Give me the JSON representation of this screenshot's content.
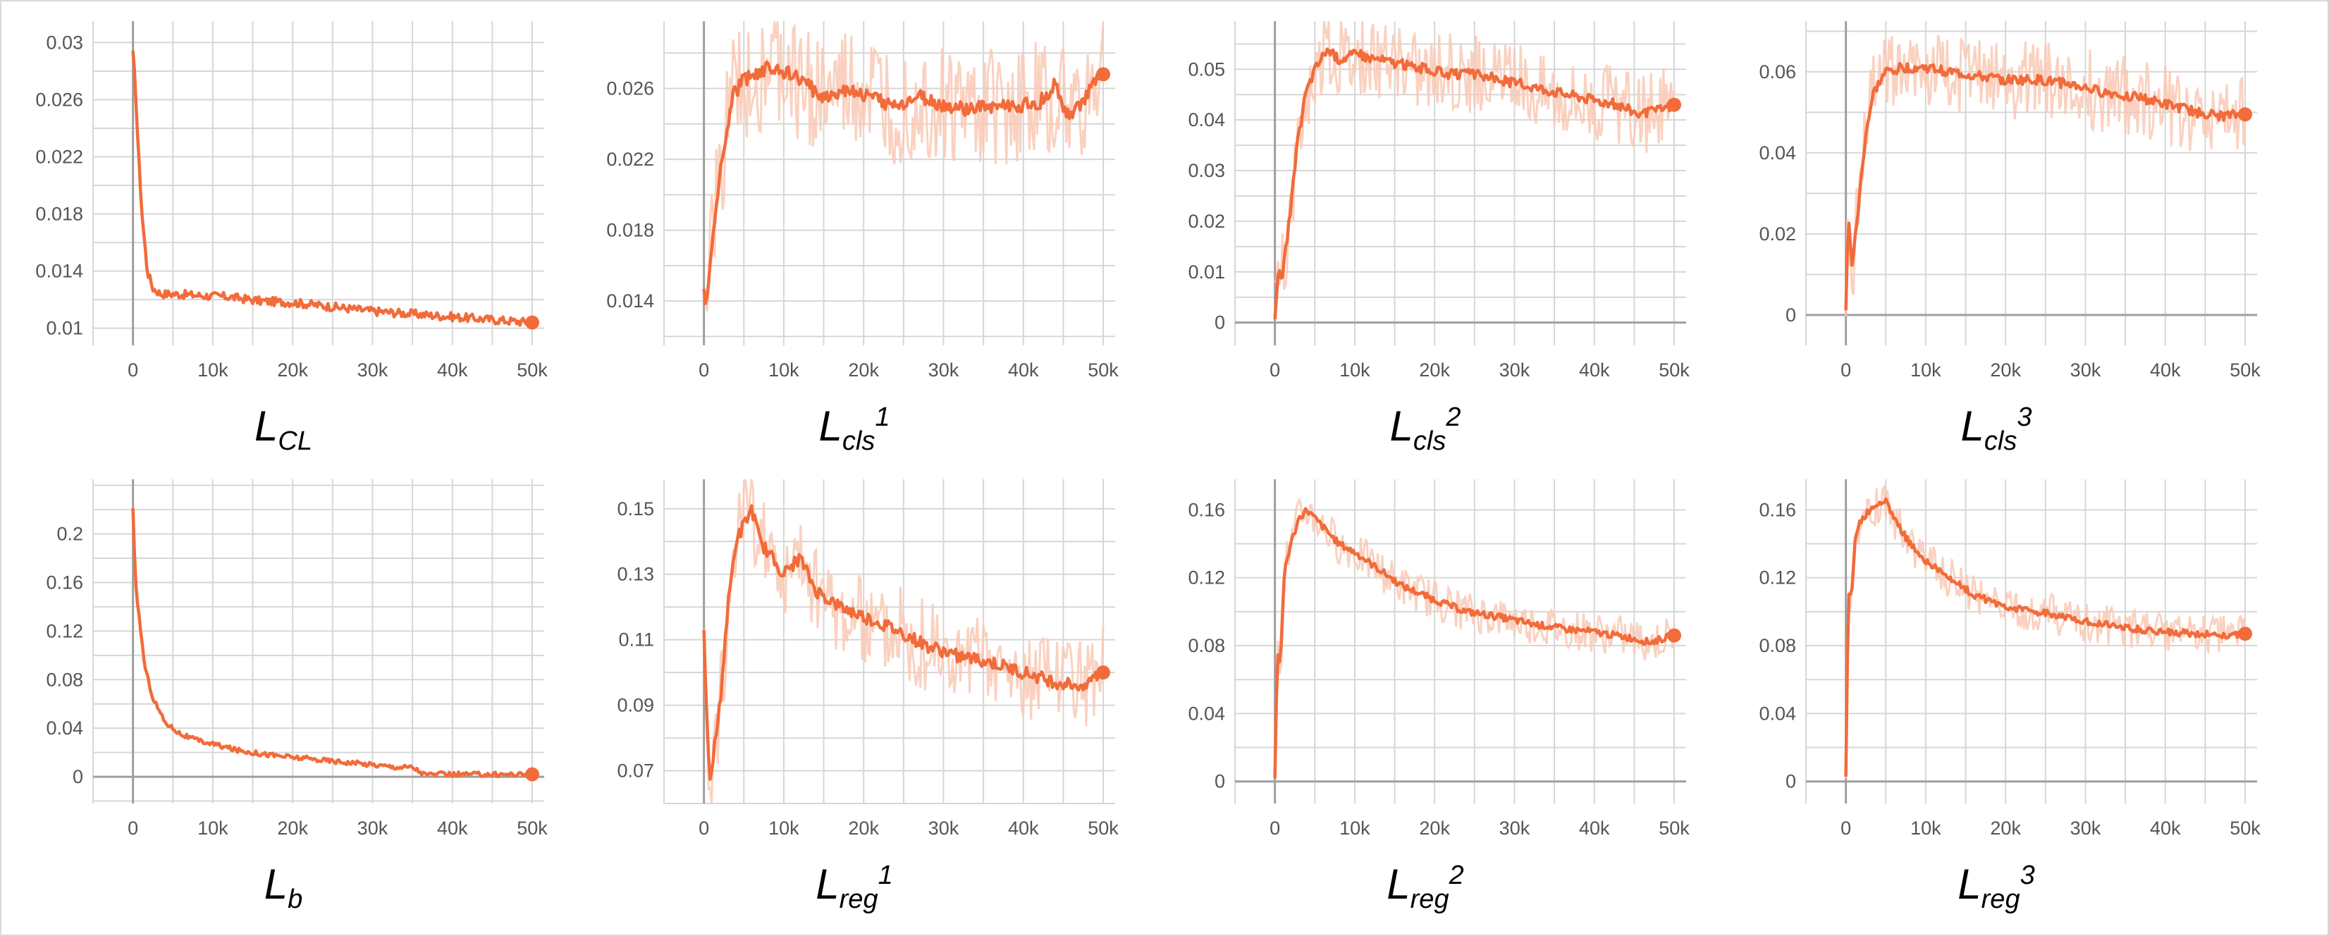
{
  "colors": {
    "line": "#f26b3a",
    "raw": "#f9c9b5",
    "grid": "#d6d6d6",
    "axis": "#9e9e9e"
  },
  "chart_data": [
    {
      "type": "line",
      "id": "lcl",
      "label": {
        "base": "L",
        "sub": "CL",
        "sup": ""
      },
      "xlim": [
        -5000,
        51500
      ],
      "ylim": [
        0.0088,
        0.0315
      ],
      "xticks": [
        0,
        10000,
        20000,
        30000,
        40000,
        50000
      ],
      "xtick_labels": [
        "0",
        "10k",
        "20k",
        "30k",
        "40k",
        "50k"
      ],
      "yticks": [
        0.01,
        0.014,
        0.018,
        0.022,
        0.026,
        0.03
      ],
      "ytick_labels": [
        "0.01",
        "0.014",
        "0.018",
        "0.022",
        "0.026",
        "0.03"
      ],
      "series": [
        {
          "x": [
            0,
            300,
            700,
            1200,
            1800,
            2500,
            3500,
            5000,
            8000,
            12000,
            16000,
            20000,
            25000,
            30000,
            35000,
            40000,
            45000,
            50000
          ],
          "y": [
            0.0292,
            0.027,
            0.022,
            0.0175,
            0.014,
            0.0128,
            0.0124,
            0.0124,
            0.0123,
            0.0122,
            0.0119,
            0.0118,
            0.0115,
            0.0112,
            0.011,
            0.0108,
            0.0106,
            0.0104
          ]
        }
      ],
      "noise": 0.0003,
      "endpoint": [
        50000,
        0.0104
      ]
    },
    {
      "type": "line",
      "id": "lcls1",
      "label": {
        "base": "L",
        "sub": "cls",
        "sup": "1"
      },
      "xlim": [
        -5000,
        51500
      ],
      "ylim": [
        0.0115,
        0.0298
      ],
      "xticks": [
        0,
        10000,
        20000,
        30000,
        40000,
        50000
      ],
      "xtick_labels": [
        "0",
        "10k",
        "20k",
        "30k",
        "40k",
        "50k"
      ],
      "yticks": [
        0.014,
        0.018,
        0.022,
        0.026
      ],
      "ytick_labels": [
        "0.014",
        "0.018",
        "0.022",
        "0.026"
      ],
      "series": [
        {
          "x": [
            0,
            300,
            800,
            1500,
            2500,
            3500,
            5000,
            7000,
            9000,
            12000,
            15000,
            18000,
            21000,
            24000,
            27000,
            30000,
            33000,
            36000,
            39000,
            42000,
            44000,
            45500,
            47000,
            48500,
            50000
          ],
          "y": [
            0.015,
            0.0135,
            0.016,
            0.0195,
            0.0225,
            0.0255,
            0.0265,
            0.027,
            0.0272,
            0.0265,
            0.0255,
            0.026,
            0.0255,
            0.025,
            0.0255,
            0.025,
            0.0248,
            0.025,
            0.025,
            0.0252,
            0.0262,
            0.0245,
            0.025,
            0.026,
            0.0268
          ]
        }
      ],
      "noise": 0.0004,
      "raw_spread": 0.0035,
      "endpoint": [
        50000,
        0.0268
      ]
    },
    {
      "type": "line",
      "id": "lcls2",
      "label": {
        "base": "L",
        "sub": "cls",
        "sup": "2"
      },
      "xlim": [
        -5000,
        51500
      ],
      "ylim": [
        -0.0045,
        0.0595
      ],
      "xticks": [
        0,
        10000,
        20000,
        30000,
        40000,
        50000
      ],
      "xtick_labels": [
        "0",
        "10k",
        "20k",
        "30k",
        "40k",
        "50k"
      ],
      "yticks": [
        0,
        0.01,
        0.02,
        0.03,
        0.04,
        0.05
      ],
      "ytick_labels": [
        "0",
        "0.01",
        "0.02",
        "0.03",
        "0.04",
        "0.05"
      ],
      "series": [
        {
          "x": [
            0,
            400,
            1000,
            1800,
            2800,
            3800,
            5000,
            6500,
            8000,
            10000,
            13000,
            16000,
            19000,
            22000,
            25000,
            28000,
            31000,
            34000,
            37000,
            40000,
            43000,
            46000,
            48000,
            50000
          ],
          "y": [
            0.001,
            0.009,
            0.01,
            0.02,
            0.035,
            0.045,
            0.05,
            0.054,
            0.052,
            0.053,
            0.052,
            0.051,
            0.05,
            0.049,
            0.049,
            0.048,
            0.047,
            0.046,
            0.045,
            0.044,
            0.043,
            0.041,
            0.042,
            0.043
          ]
        }
      ],
      "noise": 0.001,
      "raw_spread": 0.008,
      "endpoint": [
        50000,
        0.043
      ]
    },
    {
      "type": "line",
      "id": "lcls3",
      "label": {
        "base": "L",
        "sub": "cls",
        "sup": "3"
      },
      "xlim": [
        -5000,
        51500
      ],
      "ylim": [
        -0.0075,
        0.0725
      ],
      "xticks": [
        0,
        10000,
        20000,
        30000,
        40000,
        50000
      ],
      "xtick_labels": [
        "0",
        "10k",
        "20k",
        "30k",
        "40k",
        "50k"
      ],
      "yticks": [
        0,
        0.02,
        0.04,
        0.06
      ],
      "ytick_labels": [
        "0",
        "0.02",
        "0.04",
        "0.06"
      ],
      "series": [
        {
          "x": [
            0,
            300,
            800,
            1500,
            2500,
            3500,
            5000,
            7000,
            10000,
            13000,
            16000,
            20000,
            24000,
            28000,
            32000,
            36000,
            40000,
            44000,
            47000,
            50000
          ],
          "y": [
            0.001,
            0.024,
            0.012,
            0.025,
            0.045,
            0.055,
            0.06,
            0.061,
            0.061,
            0.06,
            0.059,
            0.058,
            0.058,
            0.057,
            0.055,
            0.054,
            0.052,
            0.05,
            0.049,
            0.0495
          ]
        }
      ],
      "noise": 0.0012,
      "raw_spread": 0.01,
      "endpoint": [
        50000,
        0.0495
      ]
    },
    {
      "type": "line",
      "id": "lb",
      "label": {
        "base": "L",
        "sub": "b",
        "sup": ""
      },
      "xlim": [
        -5000,
        51500
      ],
      "ylim": [
        -0.022,
        0.245
      ],
      "xticks": [
        0,
        10000,
        20000,
        30000,
        40000,
        50000
      ],
      "xtick_labels": [
        "0",
        "10k",
        "20k",
        "30k",
        "40k",
        "50k"
      ],
      "yticks": [
        0,
        0.04,
        0.08,
        0.12,
        0.16,
        0.2
      ],
      "ytick_labels": [
        "0",
        "0.04",
        "0.08",
        "0.12",
        "0.16",
        "0.2"
      ],
      "series": [
        {
          "x": [
            0,
            300,
            800,
            1500,
            2500,
            4000,
            6000,
            8000,
            10000,
            13000,
            16000,
            20000,
            25000,
            30000,
            33000,
            35000,
            36500,
            40000,
            45000,
            50000
          ],
          "y": [
            0.22,
            0.16,
            0.13,
            0.09,
            0.065,
            0.045,
            0.035,
            0.03,
            0.027,
            0.022,
            0.019,
            0.016,
            0.013,
            0.01,
            0.008,
            0.008,
            0.002,
            0.002,
            0.002,
            0.002
          ]
        }
      ],
      "noise": 0.002,
      "endpoint": [
        50000,
        0.002
      ]
    },
    {
      "type": "line",
      "id": "lreg1",
      "label": {
        "base": "L",
        "sub": "reg",
        "sup": "1"
      },
      "xlim": [
        -5000,
        51500
      ],
      "ylim": [
        0.06,
        0.159
      ],
      "xticks": [
        0,
        10000,
        20000,
        30000,
        40000,
        50000
      ],
      "xtick_labels": [
        "0",
        "10k",
        "20k",
        "30k",
        "40k",
        "50k"
      ],
      "yticks": [
        0.07,
        0.09,
        0.11,
        0.13,
        0.15
      ],
      "ytick_labels": [
        "0.07",
        "0.09",
        "0.11",
        "0.13",
        "0.15"
      ],
      "series": [
        {
          "x": [
            0,
            300,
            700,
            1200,
            2000,
            3000,
            4000,
            5000,
            6000,
            7000,
            8500,
            10000,
            12000,
            14000,
            17000,
            20000,
            24000,
            28000,
            32000,
            36000,
            40000,
            44000,
            47000,
            50000
          ],
          "y": [
            0.115,
            0.09,
            0.065,
            0.075,
            0.09,
            0.12,
            0.14,
            0.145,
            0.15,
            0.14,
            0.135,
            0.13,
            0.135,
            0.125,
            0.12,
            0.117,
            0.113,
            0.108,
            0.105,
            0.103,
            0.1,
            0.097,
            0.096,
            0.1
          ]
        }
      ],
      "noise": 0.002,
      "raw_spread": 0.014,
      "endpoint": [
        50000,
        0.1
      ]
    },
    {
      "type": "line",
      "id": "lreg2",
      "label": {
        "base": "L",
        "sub": "reg",
        "sup": "2"
      },
      "xlim": [
        -5000,
        51500
      ],
      "ylim": [
        -0.013,
        0.178
      ],
      "xticks": [
        0,
        10000,
        20000,
        30000,
        40000,
        50000
      ],
      "xtick_labels": [
        "0",
        "10k",
        "20k",
        "30k",
        "40k",
        "50k"
      ],
      "yticks": [
        0,
        0.04,
        0.08,
        0.12,
        0.16
      ],
      "ytick_labels": [
        "0",
        "0.04",
        "0.08",
        "0.12",
        "0.16"
      ],
      "series": [
        {
          "x": [
            0,
            300,
            700,
            1200,
            2000,
            3000,
            4000,
            6000,
            8000,
            10000,
            13000,
            16000,
            20000,
            24000,
            28000,
            32000,
            36000,
            40000,
            44000,
            47000,
            50000
          ],
          "y": [
            0.003,
            0.075,
            0.07,
            0.125,
            0.14,
            0.155,
            0.16,
            0.15,
            0.14,
            0.135,
            0.125,
            0.115,
            0.107,
            0.1,
            0.097,
            0.093,
            0.09,
            0.088,
            0.085,
            0.082,
            0.086
          ]
        }
      ],
      "noise": 0.002,
      "raw_spread": 0.012,
      "endpoint": [
        50000,
        0.086
      ]
    },
    {
      "type": "line",
      "id": "lreg3",
      "label": {
        "base": "L",
        "sub": "reg",
        "sup": "3"
      },
      "xlim": [
        -5000,
        51500
      ],
      "ylim": [
        -0.013,
        0.178
      ],
      "xticks": [
        0,
        10000,
        20000,
        30000,
        40000,
        50000
      ],
      "xtick_labels": [
        "0",
        "10k",
        "20k",
        "30k",
        "40k",
        "50k"
      ],
      "yticks": [
        0,
        0.04,
        0.08,
        0.12,
        0.16
      ],
      "ytick_labels": [
        "0",
        "0.04",
        "0.08",
        "0.12",
        "0.16"
      ],
      "series": [
        {
          "x": [
            0,
            300,
            700,
            1200,
            2000,
            3000,
            4000,
            5000,
            6000,
            8000,
            10000,
            13000,
            16000,
            20000,
            24000,
            28000,
            32000,
            36000,
            40000,
            44000,
            47000,
            50000
          ],
          "y": [
            0.003,
            0.11,
            0.11,
            0.145,
            0.155,
            0.16,
            0.163,
            0.165,
            0.155,
            0.14,
            0.13,
            0.12,
            0.11,
            0.103,
            0.1,
            0.096,
            0.093,
            0.09,
            0.088,
            0.087,
            0.086,
            0.087
          ]
        }
      ],
      "noise": 0.002,
      "raw_spread": 0.012,
      "endpoint": [
        50000,
        0.087
      ]
    }
  ]
}
